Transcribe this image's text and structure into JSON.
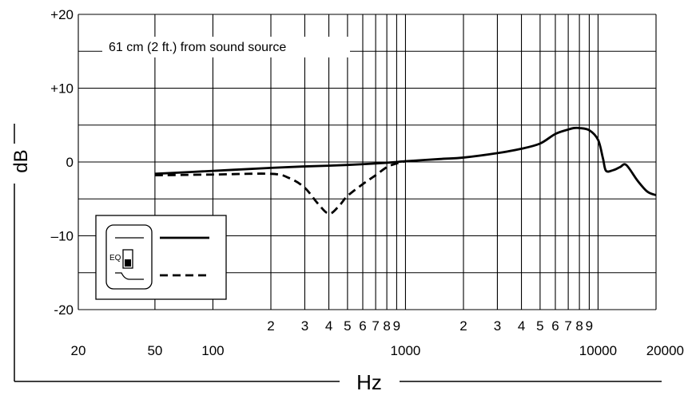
{
  "chart_data": {
    "type": "line",
    "title": "",
    "annotation": "61 cm (2 ft.) from sound source",
    "xlabel": "Hz",
    "ylabel": "dB",
    "x_scale": "log",
    "xlim": [
      20,
      20000
    ],
    "ylim": [
      -20,
      20
    ],
    "grid": true,
    "y_ticks": [
      {
        "value": 20,
        "label": "+20"
      },
      {
        "value": 10,
        "label": "+10"
      },
      {
        "value": 0,
        "label": "0"
      },
      {
        "value": -10,
        "label": "–10"
      },
      {
        "value": -20,
        "label": "-20"
      }
    ],
    "x_major_labels": [
      {
        "value": 20,
        "label": "20"
      },
      {
        "value": 50,
        "label": "50"
      },
      {
        "value": 100,
        "label": "100"
      },
      {
        "value": 1000,
        "label": "1000"
      },
      {
        "value": 10000,
        "label": "10000"
      },
      {
        "value": 20000,
        "label": "20000"
      }
    ],
    "x_minor_labels": [
      {
        "value": 200,
        "label": "2"
      },
      {
        "value": 300,
        "label": "3"
      },
      {
        "value": 400,
        "label": "4"
      },
      {
        "value": 500,
        "label": "5"
      },
      {
        "value": 600,
        "label": "6"
      },
      {
        "value": 700,
        "label": "7"
      },
      {
        "value": 800,
        "label": "8"
      },
      {
        "value": 900,
        "label": "9"
      },
      {
        "value": 2000,
        "label": "2"
      },
      {
        "value": 3000,
        "label": "3"
      },
      {
        "value": 4000,
        "label": "4"
      },
      {
        "value": 5000,
        "label": "5"
      },
      {
        "value": 6000,
        "label": "6"
      },
      {
        "value": 7000,
        "label": "7"
      },
      {
        "value": 8000,
        "label": "8"
      },
      {
        "value": 9000,
        "label": "9"
      }
    ],
    "x_gridlines": [
      20,
      50,
      100,
      200,
      300,
      400,
      500,
      600,
      700,
      800,
      900,
      1000,
      2000,
      3000,
      4000,
      5000,
      6000,
      7000,
      8000,
      9000,
      10000,
      20000
    ],
    "y_gridlines": [
      20,
      15,
      10,
      5,
      0,
      -5,
      -10,
      -15,
      -20
    ],
    "legend": {
      "placement": "bottom-left",
      "switch_label": "EQ",
      "entries": [
        {
          "series": "flat",
          "style": "solid"
        },
        {
          "series": "eq",
          "style": "dashed"
        }
      ]
    },
    "series": [
      {
        "style": "solid",
        "x": [
          50,
          100,
          200,
          300,
          400,
          500,
          600,
          700,
          800,
          900,
          1000,
          1500,
          2000,
          3000,
          4000,
          5000,
          6000,
          7000,
          7500,
          8000,
          9000,
          10000,
          10600,
          11000,
          12000,
          13000,
          14000,
          16000,
          18000,
          20000
        ],
        "y": [
          -1.6,
          -1.2,
          -0.8,
          -0.6,
          -0.5,
          -0.4,
          -0.3,
          -0.2,
          -0.1,
          0,
          0.1,
          0.4,
          0.6,
          1.2,
          1.8,
          2.5,
          3.8,
          4.4,
          4.6,
          4.6,
          4.3,
          3.0,
          0.5,
          -1.2,
          -1.1,
          -0.7,
          -0.4,
          -2.5,
          -4.0,
          -4.5
        ]
      },
      {
        "style": "dashed",
        "x": [
          50,
          100,
          200,
          250,
          300,
          350,
          400,
          450,
          500,
          600,
          700,
          800,
          900,
          1000
        ],
        "y": [
          -1.8,
          -1.7,
          -1.6,
          -2.2,
          -3.5,
          -5.6,
          -7.0,
          -6.0,
          -4.6,
          -3.0,
          -1.8,
          -0.7,
          -0.2,
          0.1
        ]
      }
    ]
  }
}
